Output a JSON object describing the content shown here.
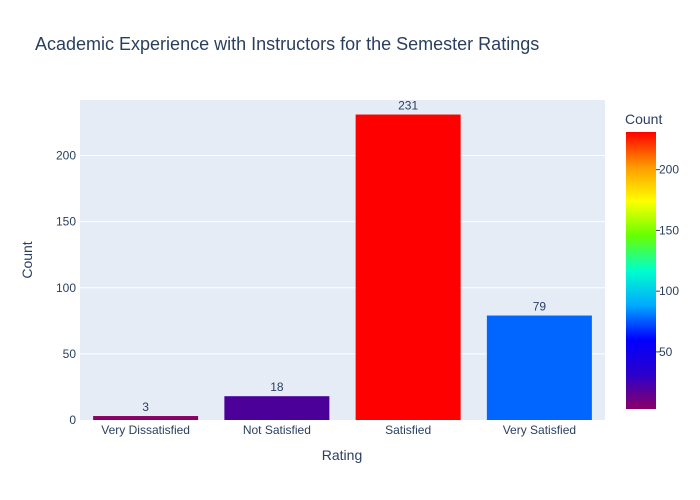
{
  "chart_data": {
    "type": "bar",
    "title": "Academic Experience with Instructors for the Semester Ratings",
    "xlabel": "Rating",
    "ylabel": "Count",
    "categories": [
      "Very Dissatisfied",
      "Not Satisfied",
      "Satisfied",
      "Very Satisfied"
    ],
    "values": [
      3,
      18,
      231,
      79
    ],
    "bar_labels": [
      "3",
      "18",
      "231",
      "79"
    ],
    "ylim": [
      0,
      242
    ],
    "y_ticks": [
      0,
      50,
      100,
      150,
      200
    ],
    "grid": true,
    "background_color": "#e5ecf6",
    "bar_colors": [
      "#8b0066",
      "#4b0099",
      "#ff0000",
      "#0066ff"
    ],
    "colorbar": {
      "title": "Count",
      "range": [
        3,
        231
      ],
      "ticks": [
        50,
        100,
        150,
        200
      ],
      "colors": [
        "#8b0066",
        "#2b00cc",
        "#0000ff",
        "#00aaff",
        "#00ffcc",
        "#66ff00",
        "#ffff00",
        "#ff9900",
        "#ff0000"
      ]
    }
  }
}
